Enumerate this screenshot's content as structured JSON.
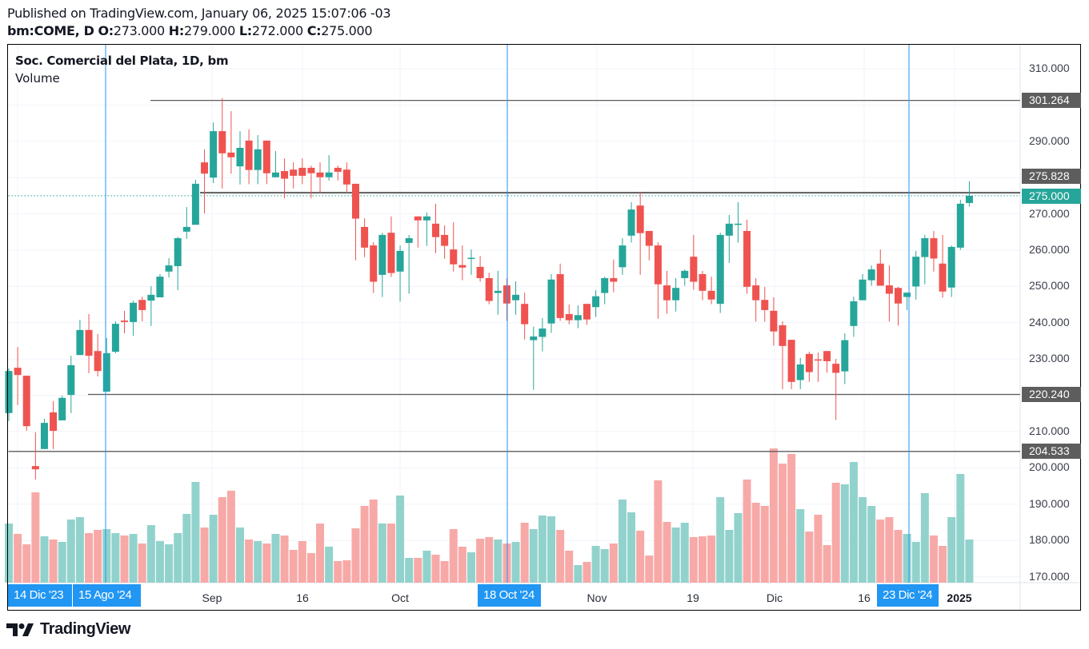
{
  "header": {
    "published": "Published on TradingView.com, January 06, 2025 15:07:06 -03",
    "symbol": "bm:COME, D",
    "o_label": "O:",
    "o_value": "273.000",
    "h_label": "H:",
    "h_value": "279.000",
    "l_label": "L:",
    "l_value": "272.000",
    "c_label": "C:",
    "c_value": "275.000"
  },
  "legend": {
    "title": "Soc. Comercial del Plata, 1D, bm",
    "volume": "Volume"
  },
  "colors": {
    "up": "#26a69a",
    "down": "#ef5350",
    "up_vol": "#92d2cc",
    "down_vol": "#f7a9a7",
    "marker": "#2196f3",
    "level": "#5d5d5d"
  },
  "price_axis": {
    "ticks": [
      "310.000",
      "290.000",
      "270.000",
      "260.000",
      "250.000",
      "240.000",
      "230.000",
      "210.000",
      "200.000",
      "190.000",
      "180.000",
      "170.000"
    ],
    "levels": [
      {
        "label": "301.264",
        "value": 301.264
      },
      {
        "label": "275.828",
        "value": 275.828
      },
      {
        "label": "220.240",
        "value": 220.24
      },
      {
        "label": "204.533",
        "value": 204.533
      }
    ],
    "current": {
      "label": "275.000",
      "value": 275.0
    }
  },
  "time_axis": {
    "ticks": [
      "Sep",
      "16",
      "Oct",
      "Nov",
      "19",
      "Dic",
      "16",
      "2025"
    ],
    "markers": [
      "14 Dic '23",
      "15 Ago '24",
      "18 Oct '24",
      "23 Dic '24"
    ]
  },
  "brand": {
    "name": "TradingView"
  },
  "chart_data": {
    "type": "candlestick",
    "title": "Soc. Comercial del Plata, 1D, bm",
    "ylim": [
      170,
      312
    ],
    "fields": [
      "open",
      "high",
      "low",
      "close"
    ],
    "ohlc": [
      [
        215.1,
        227.4,
        212.9,
        226.7
      ],
      [
        227.6,
        233.3,
        217.3,
        225.6
      ],
      [
        225.4,
        225.4,
        210.2,
        211.5
      ],
      [
        200.5,
        209.8,
        196.8,
        199.6
      ],
      [
        205.2,
        213.5,
        205.2,
        212.4
      ],
      [
        215.3,
        218.4,
        205.2,
        210.2
      ],
      [
        213.1,
        219.9,
        213.1,
        219.3
      ],
      [
        220.1,
        230.9,
        215.1,
        228.3
      ],
      [
        231.1,
        240.8,
        231.1,
        238.0
      ],
      [
        238.0,
        242.4,
        226.1,
        230.9
      ],
      [
        232.2,
        236.9,
        225.2,
        226.7
      ],
      [
        221.0,
        235.8,
        221.0,
        231.6
      ],
      [
        232.0,
        240.4,
        231.6,
        239.7
      ],
      [
        240.6,
        243.3,
        237.1,
        240.2
      ],
      [
        240.2,
        246.1,
        236.4,
        245.5
      ],
      [
        246.3,
        247.2,
        240.4,
        243.5
      ],
      [
        246.1,
        250.1,
        239.1,
        247.7
      ],
      [
        247.0,
        253.4,
        247.0,
        252.7
      ],
      [
        254.1,
        257.8,
        252.5,
        255.8
      ],
      [
        255.6,
        263.7,
        249.0,
        263.3
      ],
      [
        265.1,
        271.9,
        263.1,
        266.4
      ],
      [
        267.0,
        279.4,
        267.0,
        278.3
      ],
      [
        284.2,
        287.8,
        270.1,
        281.1
      ],
      [
        280.0,
        295.2,
        278.5,
        292.8
      ],
      [
        292.8,
        301.9,
        277.0,
        286.7
      ],
      [
        286.9,
        298.3,
        281.1,
        285.6
      ],
      [
        283.1,
        292.8,
        278.1,
        288.2
      ],
      [
        290.2,
        293.3,
        278.2,
        282.1
      ],
      [
        282.1,
        291.7,
        278.2,
        287.8
      ],
      [
        290.2,
        290.2,
        278.2,
        281.2
      ],
      [
        280.1,
        287.3,
        280.1,
        281.4
      ],
      [
        281.8,
        285.3,
        274.3,
        279.7
      ],
      [
        282.2,
        284.2,
        277.0,
        280.5
      ],
      [
        282.7,
        285.3,
        278.2,
        280.5
      ],
      [
        282.7,
        283.3,
        274.3,
        281.2
      ],
      [
        281.4,
        284.2,
        275.7,
        280.1
      ],
      [
        280.1,
        286.2,
        279.2,
        281.4
      ],
      [
        282.7,
        283.3,
        279.2,
        281.6
      ],
      [
        282.2,
        284.2,
        275.7,
        278.1
      ],
      [
        278.3,
        278.3,
        257.2,
        268.7
      ],
      [
        266.4,
        268.8,
        258.1,
        260.7
      ],
      [
        261.3,
        262.2,
        248.2,
        251.3
      ],
      [
        253.2,
        264.8,
        247.1,
        264.2
      ],
      [
        264.8,
        269.3,
        252.6,
        253.7
      ],
      [
        254.1,
        261.3,
        245.8,
        259.8
      ],
      [
        262.0,
        264.2,
        248.0,
        263.3
      ],
      [
        269.3,
        269.3,
        260.7,
        268.2
      ],
      [
        268.2,
        270.4,
        261.2,
        269.3
      ],
      [
        267.3,
        272.8,
        259.2,
        263.6
      ],
      [
        264.2,
        266.8,
        257.6,
        261.2
      ],
      [
        260.2,
        267.7,
        254.1,
        256.1
      ],
      [
        255.9,
        261.3,
        251.7,
        255.2
      ],
      [
        257.8,
        260.2,
        253.2,
        257.9
      ],
      [
        255.4,
        258.4,
        251.3,
        252.3
      ],
      [
        252.3,
        253.8,
        245.1,
        246.0
      ],
      [
        248.2,
        254.3,
        242.2,
        248.8
      ],
      [
        250.3,
        252.3,
        240.5,
        245.3
      ],
      [
        246.2,
        251.4,
        242.2,
        247.7
      ],
      [
        245.2,
        248.3,
        235.4,
        239.6
      ],
      [
        235.2,
        238.9,
        221.5,
        236.2
      ],
      [
        236.1,
        241.3,
        232.1,
        238.4
      ],
      [
        239.8,
        253.4,
        237.2,
        251.9
      ],
      [
        253.4,
        256.3,
        240.5,
        241.3
      ],
      [
        242.4,
        245.0,
        239.6,
        240.7
      ],
      [
        240.7,
        244.8,
        238.5,
        242.1
      ],
      [
        245.2,
        245.2,
        239.4,
        240.9
      ],
      [
        244.3,
        249.0,
        241.6,
        247.3
      ],
      [
        248.2,
        252.7,
        245.1,
        252.3
      ],
      [
        252.3,
        257.4,
        248.4,
        251.3
      ],
      [
        255.3,
        263.3,
        253.2,
        261.3
      ],
      [
        264.0,
        273.2,
        262.1,
        271.2
      ],
      [
        272.3,
        276.1,
        253.2,
        264.7
      ],
      [
        265.3,
        265.3,
        257.2,
        261.2
      ],
      [
        261.3,
        262.2,
        241.1,
        250.6
      ],
      [
        250.3,
        254.3,
        242.5,
        246.2
      ],
      [
        246.2,
        252.3,
        243.1,
        249.6
      ],
      [
        252.3,
        254.7,
        250.2,
        254.3
      ],
      [
        258.2,
        264.2,
        249.1,
        251.3
      ],
      [
        253.4,
        254.3,
        246.2,
        248.8
      ],
      [
        248.8,
        252.7,
        245.1,
        246.4
      ],
      [
        245.2,
        264.8,
        242.7,
        264.2
      ],
      [
        264.0,
        269.7,
        256.5,
        267.3
      ],
      [
        267.1,
        273.2,
        262.1,
        267.3
      ],
      [
        265.3,
        268.4,
        248.0,
        249.9
      ],
      [
        250.3,
        252.3,
        240.3,
        246.2
      ],
      [
        246.3,
        249.9,
        240.3,
        243.5
      ],
      [
        243.3,
        247.0,
        233.7,
        237.6
      ],
      [
        239.3,
        240.4,
        221.7,
        233.6
      ],
      [
        235.3,
        235.3,
        221.7,
        223.7
      ],
      [
        224.2,
        230.3,
        221.7,
        228.5
      ],
      [
        231.4,
        232.0,
        223.7,
        226.4
      ],
      [
        229.9,
        231.8,
        223.7,
        229.7
      ],
      [
        232.2,
        232.2,
        226.2,
        229.4
      ],
      [
        228.7,
        230.0,
        213.2,
        226.2
      ],
      [
        226.6,
        237.1,
        223.1,
        235.2
      ],
      [
        239.1,
        247.2,
        236.1,
        245.9
      ],
      [
        246.2,
        253.4,
        246.2,
        251.9
      ],
      [
        251.7,
        255.8,
        250.2,
        254.7
      ],
      [
        256.3,
        260.2,
        250.2,
        250.2
      ],
      [
        250.3,
        255.8,
        240.3,
        248.0
      ],
      [
        249.6,
        249.9,
        239.2,
        245.3
      ],
      [
        247.1,
        248.3,
        243.5,
        248.3
      ],
      [
        250.0,
        259.8,
        246.4,
        258.2
      ],
      [
        258.1,
        264.2,
        250.6,
        263.3
      ],
      [
        263.3,
        265.3,
        254.1,
        257.7
      ],
      [
        256.3,
        264.2,
        246.9,
        248.6
      ],
      [
        249.7,
        261.3,
        247.1,
        260.9
      ],
      [
        260.7,
        273.9,
        260.1,
        272.8
      ],
      [
        273.0,
        279.0,
        272.0,
        275.0
      ]
    ],
    "volume_relative": [
      74,
      61,
      48,
      113,
      58,
      54,
      51,
      79,
      82,
      62,
      66,
      67,
      62,
      59,
      61,
      49,
      72,
      52,
      48,
      62,
      86,
      126,
      69,
      85,
      107,
      115,
      69,
      54,
      52,
      49,
      61,
      59,
      41,
      52,
      37,
      74,
      45,
      27,
      28,
      68,
      96,
      104,
      74,
      74,
      109,
      31,
      31,
      40,
      35,
      27,
      67,
      45,
      38,
      55,
      57,
      54,
      49,
      51,
      75,
      67,
      84,
      83,
      66,
      40,
      22,
      26,
      46,
      42,
      49,
      104,
      88,
      65,
      34,
      128,
      76,
      69,
      75,
      57,
      58,
      59,
      107,
      66,
      87,
      129,
      100,
      96,
      168,
      149,
      161,
      92,
      64,
      85,
      47,
      125,
      123,
      151,
      107,
      96,
      79,
      82,
      66,
      61,
      51,
      112,
      59,
      46,
      82,
      136,
      54
    ]
  }
}
